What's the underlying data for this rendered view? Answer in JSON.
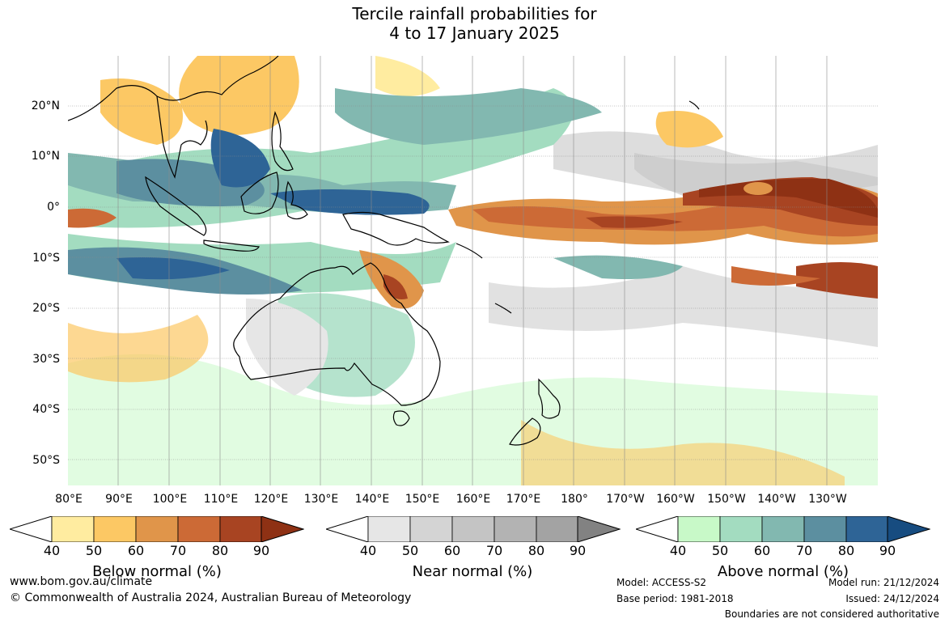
{
  "title": {
    "line1": "Tercile rainfall probabilities for",
    "line2": "4 to 17 January 2025"
  },
  "map": {
    "lat_labels": [
      "20°N",
      "10°N",
      "0°",
      "10°S",
      "20°S",
      "30°S",
      "40°S",
      "50°S"
    ],
    "lon_labels": [
      "80°E",
      "90°E",
      "100°E",
      "110°E",
      "120°E",
      "130°E",
      "140°E",
      "150°E",
      "160°E",
      "170°E",
      "180°",
      "170°W",
      "160°W",
      "150°W",
      "140°W",
      "130°W"
    ]
  },
  "legends": [
    {
      "title": "Below normal (%)",
      "ticks": [
        "40",
        "50",
        "60",
        "70",
        "80",
        "90"
      ],
      "colors": [
        "#ffeca0",
        "#fcc864",
        "#e0954a",
        "#cc6a36",
        "#a84422",
        "#8e3114"
      ]
    },
    {
      "title": "Near normal (%)",
      "ticks": [
        "40",
        "50",
        "60",
        "70",
        "80",
        "90"
      ],
      "colors": [
        "#e6e6e6",
        "#d4d4d4",
        "#c4c4c4",
        "#b3b3b3",
        "#a3a3a3",
        "#828282"
      ]
    },
    {
      "title": "Above normal (%)",
      "ticks": [
        "40",
        "50",
        "60",
        "70",
        "80",
        "90"
      ],
      "colors": [
        "#c8f9c8",
        "#a3dcc0",
        "#82b8b0",
        "#5c8fa0",
        "#2e6496",
        "#174c80"
      ]
    }
  ],
  "footer": {
    "website": "www.bom.gov.au/climate",
    "copyright": "© Commonwealth of Australia 2024, Australian Bureau of Meteorology",
    "model": "Model: ACCESS-S2",
    "base_period": "Base period: 1981-2018",
    "model_run": "Model run: 21/12/2024",
    "issued": "Issued: 24/12/2024",
    "boundaries": "Boundaries are not considered authoritative"
  }
}
